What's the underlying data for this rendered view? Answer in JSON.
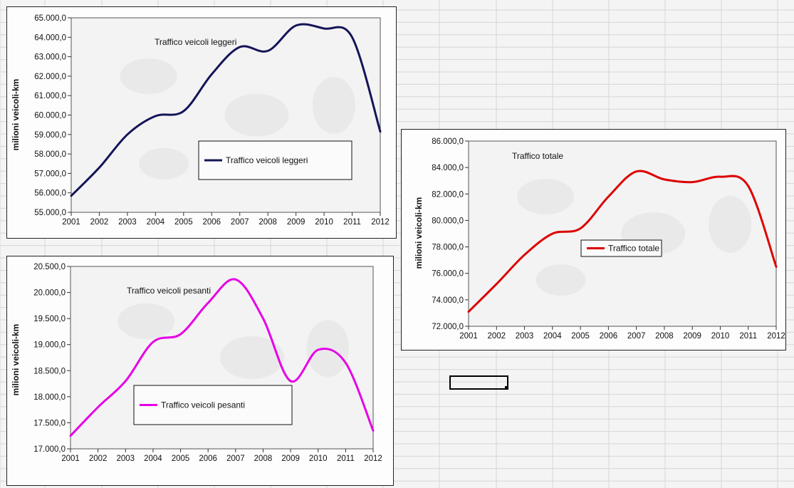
{
  "chart_data": [
    {
      "type": "line",
      "title": "Traffico veicoli leggeri",
      "ylabel": "milioni veicoli-km",
      "xlabel": "",
      "categories": [
        "2001",
        "2002",
        "2003",
        "2004",
        "2005",
        "2006",
        "2007",
        "2008",
        "2009",
        "2010",
        "2011",
        "2012"
      ],
      "series": [
        {
          "name": "Traffico veicoli leggeri",
          "values": [
            55850,
            57300,
            59000,
            59950,
            60200,
            62100,
            63500,
            63300,
            64600,
            64450,
            64000,
            59150
          ]
        }
      ],
      "ylim": [
        55000,
        65000
      ],
      "yticks": [
        "55.000,0",
        "56.000,0",
        "57.000,0",
        "58.000,0",
        "59.000,0",
        "60.000,0",
        "61.000,0",
        "62.000,0",
        "63.000,0",
        "64.000,0",
        "65.000,0"
      ],
      "color": "#141459",
      "legend": "inside, lower-right"
    },
    {
      "type": "line",
      "title": "Traffico veicoli pesanti",
      "ylabel": "milioni veicoli-km",
      "xlabel": "",
      "categories": [
        "2001",
        "2002",
        "2003",
        "2004",
        "2005",
        "2006",
        "2007",
        "2008",
        "2009",
        "2010",
        "2011",
        "2012"
      ],
      "series": [
        {
          "name": "Traffico veicoli pesanti",
          "values": [
            17250,
            17800,
            18300,
            19050,
            19200,
            19800,
            20250,
            19500,
            18300,
            18900,
            18650,
            17350
          ]
        }
      ],
      "ylim": [
        17000,
        20500
      ],
      "yticks": [
        "17.000,0",
        "17.500,0",
        "18.000,0",
        "18.500,0",
        "19.000,0",
        "19.500,0",
        "20.000,0",
        "20.500,0"
      ],
      "color": "#e600e6",
      "legend": "inside, lower-left"
    },
    {
      "type": "line",
      "title": "Traffico totale",
      "ylabel": "milioni veicoli-km",
      "xlabel": "",
      "categories": [
        "2001",
        "2002",
        "2003",
        "2004",
        "2005",
        "2006",
        "2007",
        "2008",
        "2009",
        "2010",
        "2011",
        "2012"
      ],
      "series": [
        {
          "name": "Traffico totale",
          "values": [
            73100,
            75200,
            77400,
            79000,
            79400,
            81800,
            83700,
            83100,
            82900,
            83300,
            82600,
            76500
          ]
        }
      ],
      "ylim": [
        72000,
        86000
      ],
      "yticks": [
        "72.000,0",
        "74.000,0",
        "76.000,0",
        "78.000,0",
        "80.000,0",
        "82.000,0",
        "84.000,0",
        "86.000,0"
      ],
      "color": "#dd0000",
      "legend": "inside, center"
    }
  ]
}
